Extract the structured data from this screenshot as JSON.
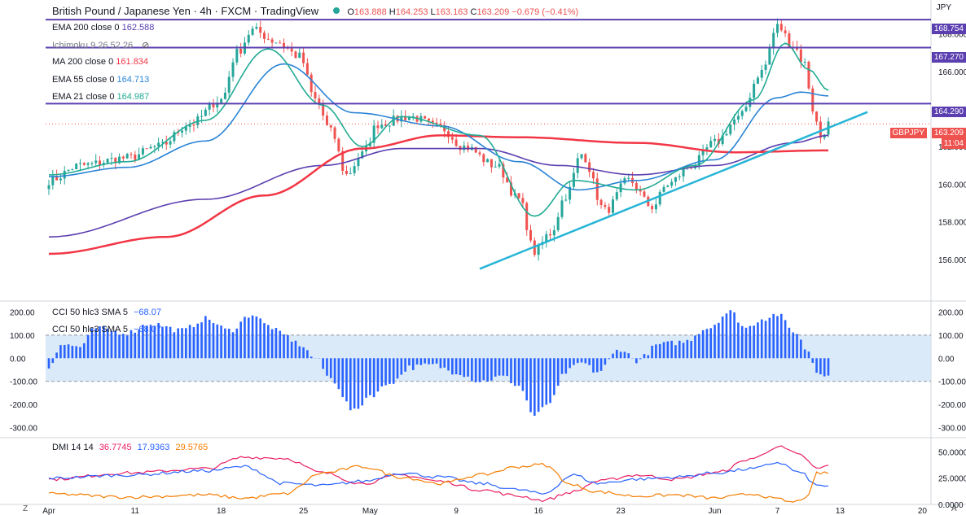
{
  "header": {
    "symbol": "British Pound / Japanese Yen · 4h · FXCM · TradingView",
    "open_lbl": "O",
    "open": "163.888",
    "high_lbl": "H",
    "high": "164.253",
    "low_lbl": "L",
    "low": "163.163",
    "close_lbl": "C",
    "close": "163.209",
    "change": "−0.679 (−0.41%)",
    "currency": "JPY"
  },
  "legend": {
    "ema200": {
      "label": "EMA 200 close 0",
      "value": "162.588",
      "color": "#5b3fb0"
    },
    "ichimoku": {
      "label": "Ichimoku 9 26 52 26"
    },
    "ma200": {
      "label": "MA 200 close 0",
      "value": "161.834",
      "color": "#f23645"
    },
    "ema55": {
      "label": "EMA 55 close 0",
      "value": "164.713",
      "color": "#2a84d6"
    },
    "ema21": {
      "label": "EMA 21 close 0",
      "value": "164.987",
      "color": "#22ab94"
    }
  },
  "price_labels": {
    "h1": "168.754",
    "h2": "167.270",
    "h3": "164.290",
    "symbol_tag": "GBPJPY",
    "last": "163.209",
    "countdown": "11:04"
  },
  "cci_legend": {
    "line1_label": "CCI 50 hlc3 SMA 5",
    "line1_value": "−68.07",
    "line2_label": "CCI 50 hlc3 SMA 5",
    "line2_value": "−68.07"
  },
  "dmi_legend": {
    "label": "DMI 14 14",
    "v1": "36.7745",
    "v2": "17.9363",
    "v3": "29.5765"
  },
  "colors": {
    "candle_up": "#26a69a",
    "candle_down": "#ef5350",
    "hline": "#5b3fb0",
    "trend": "#26b5d6",
    "cci": "#2962ff",
    "cci_band": "#cfe3f7",
    "dmi_red": "#e91e63",
    "dmi_blue": "#2962ff",
    "dmi_orange": "#f57c00"
  },
  "bottom_corner": "Z",
  "right_corner": "A",
  "chart_data": [
    {
      "type": "line",
      "title": "British Pound / Japanese Yen · 4h · FXCM",
      "x_ticks": [
        "Apr",
        "11",
        "18",
        "25",
        "May",
        "9",
        "16",
        "23",
        "Jun",
        "7",
        "13",
        "20"
      ],
      "y_ticks": [
        156.0,
        158.0,
        160.0,
        162.0,
        164.0,
        166.0,
        168.0
      ],
      "ylim": [
        155.0,
        169.8
      ],
      "n": 200,
      "close_anchors": [
        [
          0,
          160.2
        ],
        [
          8,
          161.0
        ],
        [
          20,
          161.4
        ],
        [
          28,
          162.0
        ],
        [
          36,
          163.2
        ],
        [
          44,
          164.5
        ],
        [
          48,
          167.0
        ],
        [
          52,
          168.2
        ],
        [
          58,
          167.6
        ],
        [
          64,
          166.8
        ],
        [
          68,
          164.5
        ],
        [
          72,
          162.8
        ],
        [
          76,
          160.5
        ],
        [
          80,
          161.6
        ],
        [
          84,
          163.2
        ],
        [
          92,
          163.6
        ],
        [
          100,
          163.0
        ],
        [
          106,
          162.0
        ],
        [
          114,
          161.0
        ],
        [
          120,
          159.2
        ],
        [
          124,
          156.4
        ],
        [
          128,
          157.4
        ],
        [
          132,
          159.4
        ],
        [
          136,
          161.6
        ],
        [
          142,
          158.6
        ],
        [
          148,
          160.2
        ],
        [
          154,
          158.8
        ],
        [
          158,
          160.0
        ],
        [
          164,
          161.0
        ],
        [
          170,
          162.2
        ],
        [
          176,
          163.5
        ],
        [
          182,
          166.0
        ],
        [
          186,
          168.4
        ],
        [
          190,
          167.4
        ],
        [
          193,
          166.4
        ],
        [
          195,
          164.0
        ],
        [
          197,
          162.5
        ],
        [
          199,
          163.2
        ]
      ],
      "hlines": [
        168.754,
        167.27,
        164.29
      ],
      "last_price": 163.209,
      "trendline": [
        [
          110,
          155.5
        ],
        [
          199,
          163.0
        ]
      ],
      "series": [
        {
          "name": "EMA 200 close 0",
          "last": 162.588,
          "anchors": [
            [
              0,
              157.2
            ],
            [
              40,
              159.2
            ],
            [
              70,
              161.0
            ],
            [
              90,
              161.9
            ],
            [
              110,
              161.9
            ],
            [
              130,
              161.0
            ],
            [
              150,
              160.5
            ],
            [
              170,
              161.0
            ],
            [
              190,
              162.2
            ],
            [
              199,
              162.6
            ]
          ]
        },
        {
          "name": "MA 200 close 0",
          "last": 161.834,
          "anchors": [
            [
              0,
              156.3
            ],
            [
              30,
              157.2
            ],
            [
              55,
              159.4
            ],
            [
              80,
              161.9
            ],
            [
              100,
              162.6
            ],
            [
              120,
              162.5
            ],
            [
              150,
              162.2
            ],
            [
              175,
              161.7
            ],
            [
              199,
              161.8
            ]
          ]
        },
        {
          "name": "EMA 55 close 0",
          "last": 164.713,
          "anchors": [
            [
              0,
              160.4
            ],
            [
              20,
              160.9
            ],
            [
              40,
              162.3
            ],
            [
              60,
              166.4
            ],
            [
              78,
              163.8
            ],
            [
              100,
              163.1
            ],
            [
              120,
              161.2
            ],
            [
              135,
              159.7
            ],
            [
              150,
              160.2
            ],
            [
              170,
              161.3
            ],
            [
              186,
              164.6
            ],
            [
              192,
              164.9
            ],
            [
              199,
              164.7
            ]
          ]
        },
        {
          "name": "EMA 21 close 0",
          "last": 164.987,
          "anchors": [
            [
              0,
              160.5
            ],
            [
              20,
              161.2
            ],
            [
              40,
              163.4
            ],
            [
              56,
              167.2
            ],
            [
              70,
              164.2
            ],
            [
              80,
              162.0
            ],
            [
              90,
              163.6
            ],
            [
              110,
              162.6
            ],
            [
              124,
              158.3
            ],
            [
              134,
              160.2
            ],
            [
              150,
              159.7
            ],
            [
              165,
              161.0
            ],
            [
              180,
              164.5
            ],
            [
              188,
              167.5
            ],
            [
              194,
              166.1
            ],
            [
              199,
              165.0
            ]
          ]
        }
      ]
    },
    {
      "type": "area",
      "title": "CCI 50 hlc3 SMA 5",
      "y_ticks": [
        200.0,
        100.0,
        0.0,
        -100.0,
        -200.0,
        -300.0
      ],
      "ylim": [
        -340,
        240
      ],
      "band": [
        -100,
        100
      ],
      "last": -68.07,
      "anchors": [
        [
          0,
          -40
        ],
        [
          3,
          60
        ],
        [
          8,
          50
        ],
        [
          12,
          130
        ],
        [
          20,
          110
        ],
        [
          26,
          150
        ],
        [
          34,
          120
        ],
        [
          40,
          170
        ],
        [
          46,
          120
        ],
        [
          52,
          190
        ],
        [
          56,
          140
        ],
        [
          60,
          100
        ],
        [
          64,
          60
        ],
        [
          68,
          0
        ],
        [
          72,
          -90
        ],
        [
          78,
          -230
        ],
        [
          82,
          -160
        ],
        [
          88,
          -100
        ],
        [
          92,
          -40
        ],
        [
          98,
          -30
        ],
        [
          104,
          -60
        ],
        [
          110,
          -100
        ],
        [
          116,
          -80
        ],
        [
          120,
          -120
        ],
        [
          124,
          -250
        ],
        [
          128,
          -190
        ],
        [
          132,
          -60
        ],
        [
          136,
          -20
        ],
        [
          140,
          -60
        ],
        [
          146,
          40
        ],
        [
          150,
          -10
        ],
        [
          156,
          60
        ],
        [
          162,
          70
        ],
        [
          168,
          130
        ],
        [
          174,
          200
        ],
        [
          178,
          130
        ],
        [
          182,
          170
        ],
        [
          186,
          190
        ],
        [
          190,
          120
        ],
        [
          194,
          30
        ],
        [
          196,
          -60
        ],
        [
          199,
          -68
        ]
      ]
    },
    {
      "type": "line",
      "title": "DMI 14 14",
      "y_ticks": [
        50.0,
        25.0,
        0.0
      ],
      "ylim": [
        0,
        62
      ],
      "series": [
        {
          "name": "36.7745",
          "color": "#e91e63",
          "last": 36.7745,
          "anchors": [
            [
              0,
              24
            ],
            [
              20,
              30
            ],
            [
              40,
              34
            ],
            [
              50,
              45
            ],
            [
              60,
              44
            ],
            [
              70,
              30
            ],
            [
              80,
              20
            ],
            [
              90,
              28
            ],
            [
              100,
              22
            ],
            [
              110,
              14
            ],
            [
              120,
              8
            ],
            [
              126,
              4
            ],
            [
              134,
              12
            ],
            [
              140,
              22
            ],
            [
              150,
              28
            ],
            [
              160,
              24
            ],
            [
              170,
              30
            ],
            [
              180,
              44
            ],
            [
              186,
              55
            ],
            [
              192,
              47
            ],
            [
              196,
              34
            ],
            [
              199,
              36.8
            ]
          ]
        },
        {
          "name": "17.9363",
          "color": "#2962ff",
          "last": 17.9363,
          "anchors": [
            [
              0,
              25
            ],
            [
              20,
              28
            ],
            [
              40,
              32
            ],
            [
              50,
              36
            ],
            [
              60,
              20
            ],
            [
              70,
              18
            ],
            [
              80,
              22
            ],
            [
              90,
              30
            ],
            [
              100,
              26
            ],
            [
              110,
              20
            ],
            [
              120,
              14
            ],
            [
              126,
              10
            ],
            [
              134,
              28
            ],
            [
              140,
              20
            ],
            [
              150,
              24
            ],
            [
              160,
              26
            ],
            [
              170,
              30
            ],
            [
              180,
              34
            ],
            [
              186,
              40
            ],
            [
              192,
              30
            ],
            [
              196,
              18
            ],
            [
              199,
              17.9
            ]
          ]
        },
        {
          "name": "29.5765",
          "color": "#f57c00",
          "last": 29.5765,
          "anchors": [
            [
              0,
              10
            ],
            [
              20,
              7
            ],
            [
              40,
              9
            ],
            [
              50,
              6
            ],
            [
              60,
              10
            ],
            [
              70,
              30
            ],
            [
              80,
              36
            ],
            [
              90,
              26
            ],
            [
              100,
              20
            ],
            [
              110,
              28
            ],
            [
              120,
              36
            ],
            [
              126,
              38
            ],
            [
              134,
              18
            ],
            [
              140,
              12
            ],
            [
              150,
              8
            ],
            [
              160,
              9
            ],
            [
              170,
              6
            ],
            [
              180,
              10
            ],
            [
              186,
              5
            ],
            [
              190,
              2
            ],
            [
              194,
              8
            ],
            [
              196,
              30
            ],
            [
              199,
              29.6
            ]
          ]
        }
      ]
    }
  ]
}
